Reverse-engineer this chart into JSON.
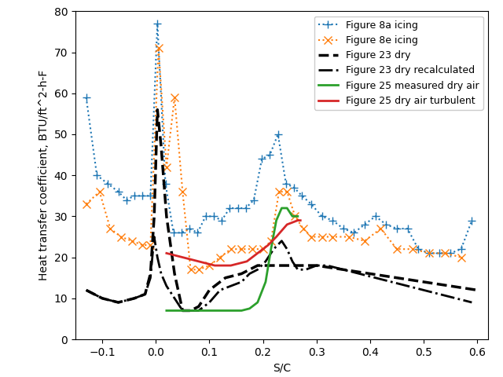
{
  "title": "",
  "xlabel": "S/C",
  "ylabel": "Heat transfer coefficient, BTU/ft^2-h-F",
  "xlim": [
    -0.15,
    0.62
  ],
  "ylim": [
    0,
    80
  ],
  "yticks": [
    0,
    10,
    20,
    30,
    40,
    50,
    60,
    70,
    80
  ],
  "xticks": [
    -0.1,
    0.0,
    0.1,
    0.2,
    0.3,
    0.4,
    0.5,
    0.6
  ],
  "fig8a_x": [
    -0.13,
    -0.11,
    -0.09,
    -0.07,
    -0.055,
    -0.04,
    -0.025,
    -0.01,
    0.003,
    0.018,
    0.033,
    0.048,
    0.063,
    0.078,
    0.093,
    0.108,
    0.123,
    0.138,
    0.153,
    0.168,
    0.183,
    0.198,
    0.213,
    0.228,
    0.243,
    0.258,
    0.273,
    0.29,
    0.31,
    0.33,
    0.35,
    0.37,
    0.39,
    0.41,
    0.43,
    0.45,
    0.47,
    0.49,
    0.51,
    0.53,
    0.55,
    0.57,
    0.59
  ],
  "fig8a_y": [
    59,
    40,
    38,
    36,
    34,
    35,
    35,
    35,
    77,
    38,
    26,
    26,
    27,
    26,
    30,
    30,
    29,
    32,
    32,
    32,
    34,
    44,
    45,
    50,
    38,
    37,
    35,
    33,
    30,
    29,
    27,
    26,
    28,
    30,
    28,
    27,
    27,
    22,
    21,
    21,
    21,
    22,
    29
  ],
  "fig8e_x": [
    -0.13,
    -0.105,
    -0.085,
    -0.065,
    -0.045,
    -0.025,
    -0.01,
    0.005,
    0.02,
    0.035,
    0.05,
    0.065,
    0.08,
    0.1,
    0.12,
    0.14,
    0.16,
    0.18,
    0.2,
    0.215,
    0.23,
    0.245,
    0.26,
    0.275,
    0.29,
    0.31,
    0.33,
    0.36,
    0.39,
    0.42,
    0.45,
    0.48,
    0.51,
    0.54,
    0.57
  ],
  "fig8e_y": [
    33,
    36,
    27,
    25,
    24,
    23,
    23,
    71,
    42,
    59,
    36,
    17,
    17,
    18,
    20,
    22,
    22,
    22,
    22,
    24,
    36,
    36,
    30,
    27,
    25,
    25,
    25,
    25,
    24,
    27,
    22,
    22,
    21,
    21,
    20
  ],
  "fig23_dry_x": [
    -0.13,
    -0.1,
    -0.07,
    -0.04,
    -0.02,
    -0.01,
    -0.003,
    0.003,
    0.01,
    0.02,
    0.035,
    0.05,
    0.065,
    0.08,
    0.1,
    0.13,
    0.16,
    0.19,
    0.22,
    0.26,
    0.3,
    0.35,
    0.4,
    0.45,
    0.5,
    0.55,
    0.6
  ],
  "fig23_dry_y": [
    12,
    10,
    9,
    10,
    11,
    16,
    30,
    56,
    47,
    30,
    16,
    7,
    7,
    8,
    12,
    15,
    16,
    18,
    18,
    18,
    18,
    17,
    16,
    15,
    14,
    13,
    12
  ],
  "fig23_recalc_x": [
    -0.13,
    -0.1,
    -0.07,
    -0.04,
    -0.02,
    -0.01,
    -0.003,
    0.003,
    0.01,
    0.02,
    0.035,
    0.05,
    0.065,
    0.08,
    0.1,
    0.12,
    0.14,
    0.16,
    0.175,
    0.19,
    0.205,
    0.22,
    0.235,
    0.245,
    0.255,
    0.265,
    0.28,
    0.3,
    0.32,
    0.35,
    0.38,
    0.41,
    0.44,
    0.47,
    0.5,
    0.53,
    0.56,
    0.59
  ],
  "fig23_recalc_y": [
    12,
    10,
    9,
    10,
    11,
    15,
    25,
    20,
    16,
    13,
    10,
    7,
    7,
    7,
    9,
    12,
    13,
    14,
    16,
    17,
    19,
    22,
    24,
    22,
    19,
    17,
    17,
    18,
    18,
    17,
    16,
    15,
    14,
    13,
    12,
    11,
    10,
    9
  ],
  "fig25_green_x": [
    0.02,
    0.04,
    0.06,
    0.08,
    0.1,
    0.12,
    0.14,
    0.16,
    0.175,
    0.19,
    0.205,
    0.215,
    0.225,
    0.235,
    0.245,
    0.255,
    0.265
  ],
  "fig25_green_y": [
    7,
    7,
    7,
    7,
    7,
    7,
    7,
    7,
    7.5,
    9,
    14,
    22,
    29,
    32,
    32,
    30,
    30
  ],
  "fig25_red_x": [
    0.02,
    0.05,
    0.08,
    0.11,
    0.14,
    0.17,
    0.19,
    0.21,
    0.225,
    0.245,
    0.265,
    0.27
  ],
  "fig25_red_y": [
    21,
    20,
    19,
    18,
    18,
    19,
    21,
    23,
    25,
    28,
    29,
    29
  ],
  "colors": {
    "fig8a": "#1f77b4",
    "fig8e": "#ff7f0e",
    "fig23_dry": "#000000",
    "fig23_recalc": "#000000",
    "fig25_green": "#2ca02c",
    "fig25_red": "#d62728"
  }
}
